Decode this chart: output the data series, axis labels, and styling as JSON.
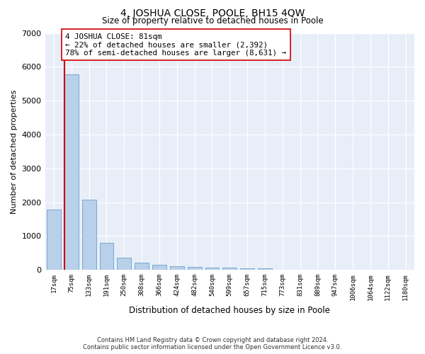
{
  "title": "4, JOSHUA CLOSE, POOLE, BH15 4QW",
  "subtitle": "Size of property relative to detached houses in Poole",
  "xlabel": "Distribution of detached houses by size in Poole",
  "ylabel": "Number of detached properties",
  "categories": [
    "17sqm",
    "75sqm",
    "133sqm",
    "191sqm",
    "250sqm",
    "308sqm",
    "366sqm",
    "424sqm",
    "482sqm",
    "540sqm",
    "599sqm",
    "657sqm",
    "715sqm",
    "773sqm",
    "831sqm",
    "889sqm",
    "947sqm",
    "1006sqm",
    "1064sqm",
    "1122sqm",
    "1180sqm"
  ],
  "values": [
    1780,
    5780,
    2080,
    800,
    350,
    220,
    155,
    105,
    85,
    70,
    60,
    55,
    50,
    0,
    0,
    0,
    0,
    0,
    0,
    0,
    0
  ],
  "bar_color": "#b8d0ea",
  "bar_edge_color": "#6a9fcc",
  "vertical_line_color": "#cc0000",
  "annotation_text": "4 JOSHUA CLOSE: 81sqm\n← 22% of detached houses are smaller (2,392)\n78% of semi-detached houses are larger (8,631) →",
  "annotation_box_color": "#ffffff",
  "annotation_box_edge": "#cc0000",
  "ylim": [
    0,
    7000
  ],
  "yticks": [
    0,
    1000,
    2000,
    3000,
    4000,
    5000,
    6000,
    7000
  ],
  "background_color": "#e8eef8",
  "grid_color": "#ffffff",
  "footer_line1": "Contains HM Land Registry data © Crown copyright and database right 2024.",
  "footer_line2": "Contains public sector information licensed under the Open Government Licence v3.0."
}
